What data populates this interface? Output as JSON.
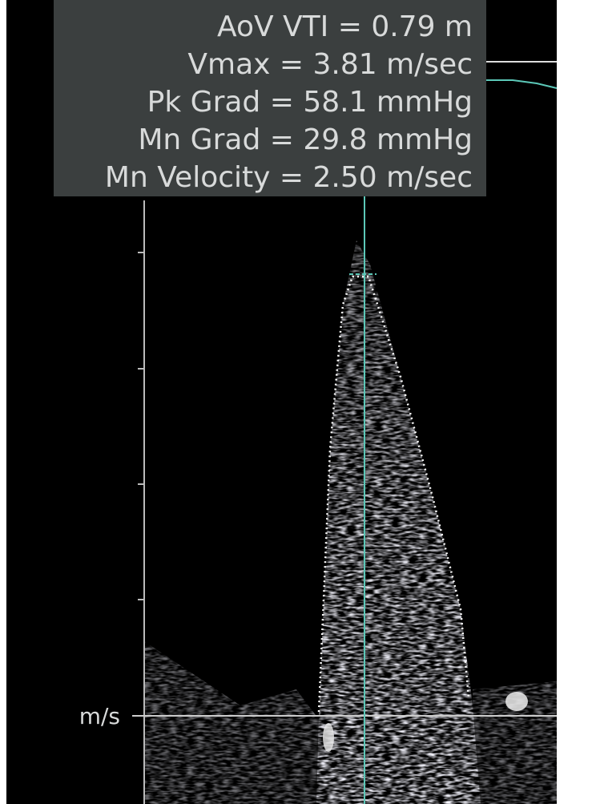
{
  "measurements": [
    "AoV VTI = 0.79 m",
    "Vmax = 3.81 m/sec",
    "Pk Grad = 58.1 mmHg",
    "Mn Grad = 29.8 mmHg",
    "Mn Velocity = 2.50 m/sec"
  ],
  "axis_label": "m/s"
}
